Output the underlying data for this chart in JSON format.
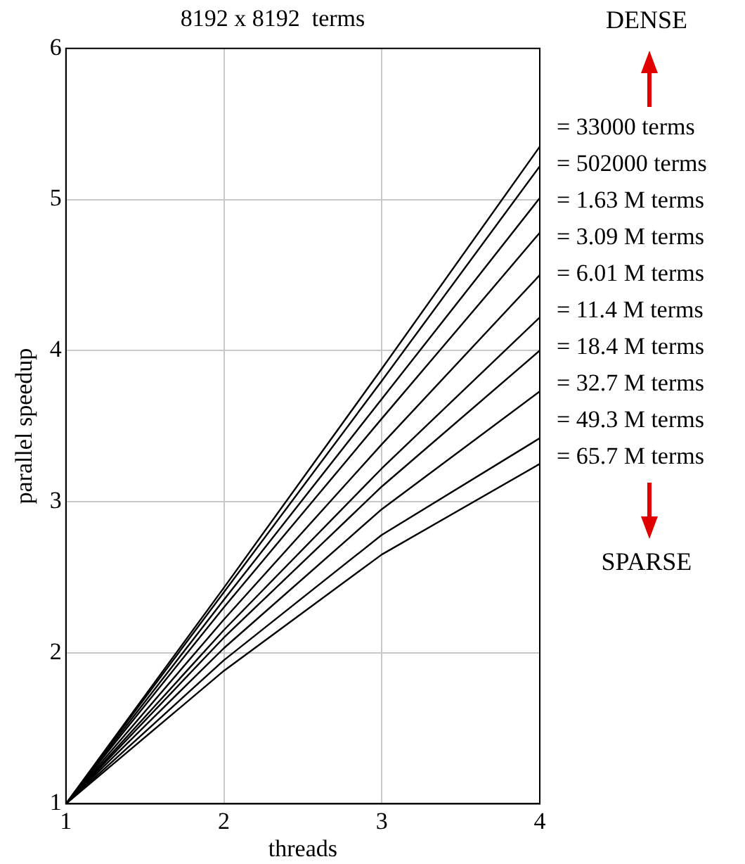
{
  "chart_data": {
    "type": "line",
    "title": "8192 x 8192  terms",
    "xlabel": "threads",
    "ylabel": "parallel speedup",
    "x": [
      1,
      2,
      3,
      4
    ],
    "xlim": [
      1,
      4
    ],
    "xticks": [
      1,
      2,
      3,
      4
    ],
    "ylim": [
      1,
      6
    ],
    "yticks": [
      1,
      2,
      3,
      4,
      5,
      6
    ],
    "grid": true,
    "legend": false,
    "marker": "none",
    "line_style": "solid",
    "annotations": [
      "DENSE",
      "SPARSE"
    ],
    "series": [
      {
        "name": "= 33000 terms",
        "color": "#000000",
        "values": [
          1,
          2.43,
          3.88,
          5.35
        ]
      },
      {
        "name": "= 502000 terms",
        "color": "#000000",
        "values": [
          1,
          2.4,
          3.8,
          5.22
        ]
      },
      {
        "name": "= 1.63 M terms",
        "color": "#000000",
        "values": [
          1,
          2.35,
          3.68,
          5.01
        ]
      },
      {
        "name": "= 3.09 M terms",
        "color": "#000000",
        "values": [
          1,
          2.3,
          3.55,
          4.78
        ]
      },
      {
        "name": "= 6.01 M terms",
        "color": "#000000",
        "values": [
          1,
          2.22,
          3.38,
          4.5
        ]
      },
      {
        "name": "= 11.4 M terms",
        "color": "#000000",
        "values": [
          1,
          2.15,
          3.22,
          4.22
        ]
      },
      {
        "name": "= 18.4 M terms",
        "color": "#000000",
        "values": [
          1,
          2.1,
          3.1,
          4.0
        ]
      },
      {
        "name": "= 32.7 M terms",
        "color": "#000000",
        "values": [
          1,
          2.03,
          2.95,
          3.73
        ]
      },
      {
        "name": "= 49.3 M terms",
        "color": "#000000",
        "values": [
          1,
          1.95,
          2.78,
          3.42
        ]
      },
      {
        "name": "= 65.7 M terms",
        "color": "#000000",
        "values": [
          1,
          1.88,
          2.65,
          3.25
        ]
      }
    ]
  }
}
